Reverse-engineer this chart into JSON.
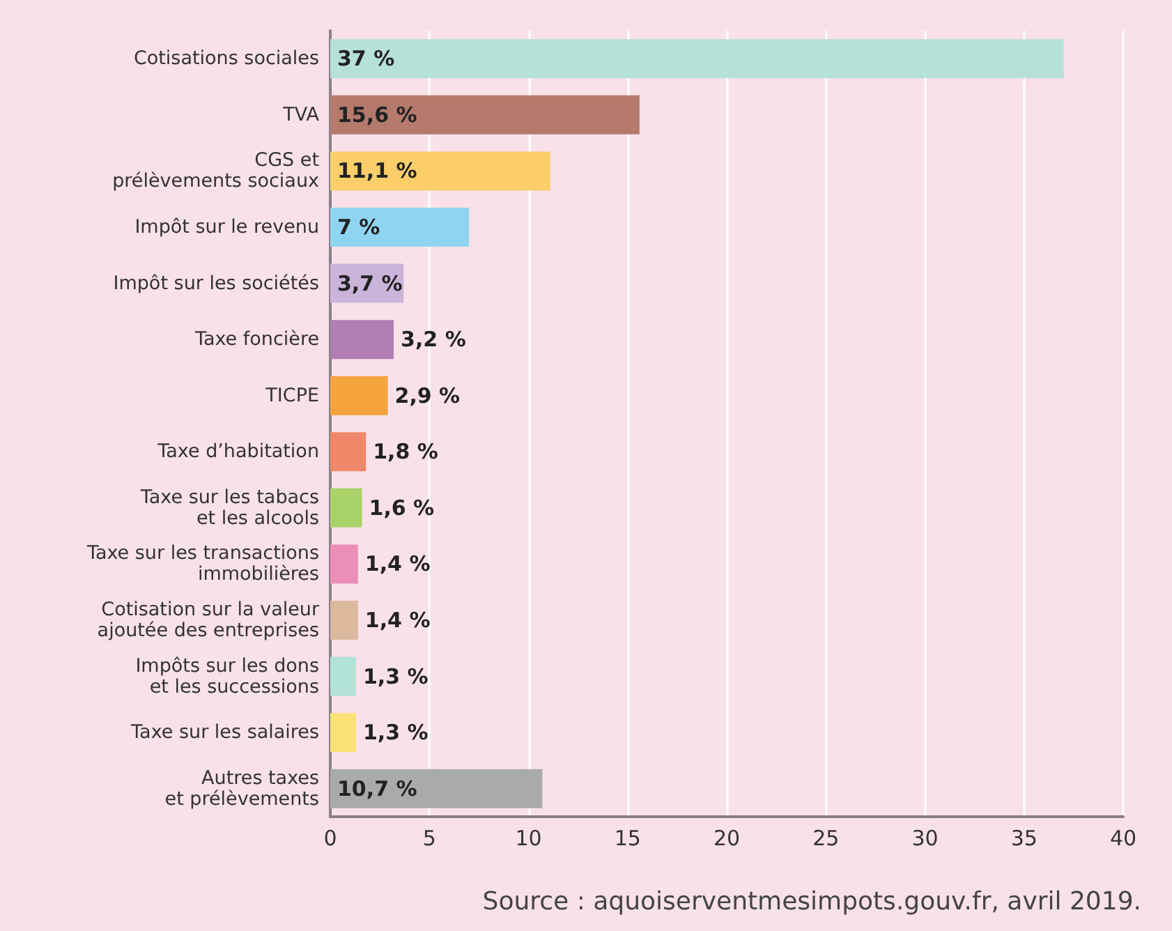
{
  "chart_data": {
    "type": "bar",
    "orientation": "horizontal",
    "categories": [
      "Cotisations sociales",
      "TVA",
      "CGS et\nprélèvements sociaux",
      "Impôt sur le revenu",
      "Impôt sur les sociétés",
      "Taxe foncière",
      "TICPE",
      "Taxe d’habitation",
      "Taxe sur les tabacs\net les alcools",
      "Taxe sur les transactions\nimmobilières",
      "Cotisation sur la valeur\najoutée des entreprises",
      "Impôts sur les dons\net les successions",
      "Taxe sur les salaires",
      "Autres taxes\net prélèvements"
    ],
    "values": [
      37,
      15.6,
      11.1,
      7,
      3.7,
      3.2,
      2.9,
      1.8,
      1.6,
      1.4,
      1.4,
      1.3,
      1.3,
      10.7
    ],
    "value_labels": [
      "37 %",
      "15,6 %",
      "11,1 %",
      "7 %",
      "3,7 %",
      "3,2 %",
      "2,9 %",
      "1,8 %",
      "1,6 %",
      "1,4 %",
      "1,4 %",
      "1,3 %",
      "1,3 %",
      "10,7 %"
    ],
    "colors": [
      "#b5e1d9",
      "#b57a6c",
      "#fcce6a",
      "#8fd5f2",
      "#cbb4d9",
      "#b27fb5",
      "#f5a33c",
      "#ef8868",
      "#a9d36a",
      "#ec8fb8",
      "#dcb89c",
      "#b3e3d8",
      "#fce276",
      "#a9aaab"
    ],
    "xlim": [
      0,
      40
    ],
    "xticks": [
      0,
      5,
      10,
      15,
      20,
      25,
      30,
      35,
      40
    ],
    "grid": "x",
    "annotations": [
      "Source : aquoiserventmesimpots.gouv.fr, avril 2019."
    ]
  }
}
